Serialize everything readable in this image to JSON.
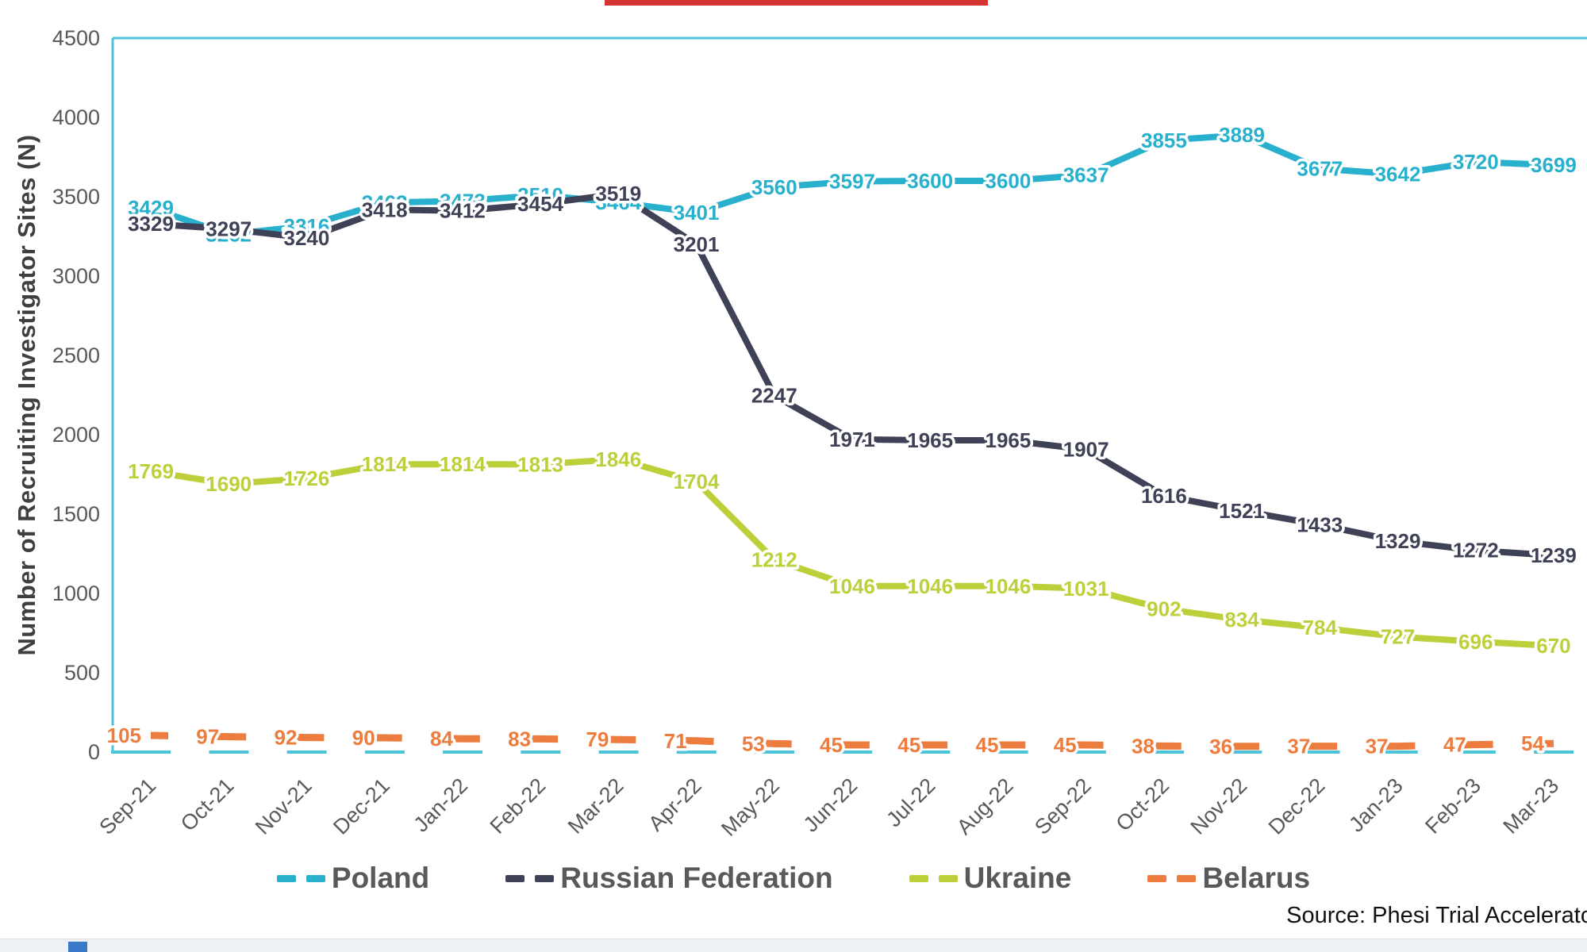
{
  "page": {
    "title_remnant_color": "#d43430"
  },
  "chart_data": {
    "type": "line",
    "title": "",
    "xlabel": "",
    "ylabel": "Number of Recruiting Investigator Sites (N)",
    "ylim": [
      0,
      4500
    ],
    "ytick_interval": 500,
    "yticks": [
      "0",
      "500",
      "1000",
      "1500",
      "2000",
      "2500",
      "3000",
      "3500",
      "4000",
      "4500"
    ],
    "grid": false,
    "legend_position": "bottom",
    "axis_color": "#4cc3d9",
    "tick_label_color": "#595959",
    "categories": [
      "Sep-21",
      "Oct-21",
      "Nov-21",
      "Dec-21",
      "Jan-22",
      "Feb-22",
      "Mar-22",
      "Apr-22",
      "May-22",
      "Jun-22",
      "Jul-22",
      "Aug-22",
      "Sep-22",
      "Oct-22",
      "Nov-22",
      "Dec-22",
      "Jan-23",
      "Feb-23",
      "Mar-23"
    ],
    "series": [
      {
        "name": "Poland",
        "color": "#29b0cc",
        "line_style": "solid",
        "values": [
          3429,
          3262,
          3316,
          3463,
          3473,
          3510,
          3464,
          3401,
          3560,
          3597,
          3600,
          3600,
          3637,
          3855,
          3889,
          3677,
          3642,
          3720,
          3699
        ]
      },
      {
        "name": "Russian Federation",
        "color": "#3f4156",
        "line_style": "solid",
        "values": [
          3329,
          3297,
          3240,
          3418,
          3412,
          3454,
          3519,
          3201,
          2247,
          1971,
          1965,
          1965,
          1907,
          1616,
          1521,
          1433,
          1329,
          1272,
          1239
        ]
      },
      {
        "name": "Ukraine",
        "color": "#bdd03c",
        "line_style": "solid",
        "values": [
          1769,
          1690,
          1726,
          1814,
          1814,
          1813,
          1846,
          1704,
          1212,
          1046,
          1046,
          1046,
          1031,
          902,
          834,
          784,
          727,
          696,
          670
        ]
      },
      {
        "name": "Belarus",
        "color": "#ec7d3f",
        "line_style": "dashed",
        "values": [
          105,
          97,
          92,
          90,
          84,
          83,
          79,
          71,
          53,
          45,
          45,
          45,
          45,
          38,
          36,
          37,
          37,
          47,
          54
        ]
      }
    ],
    "source_note": "Source: Phesi Trial Accelerato"
  }
}
